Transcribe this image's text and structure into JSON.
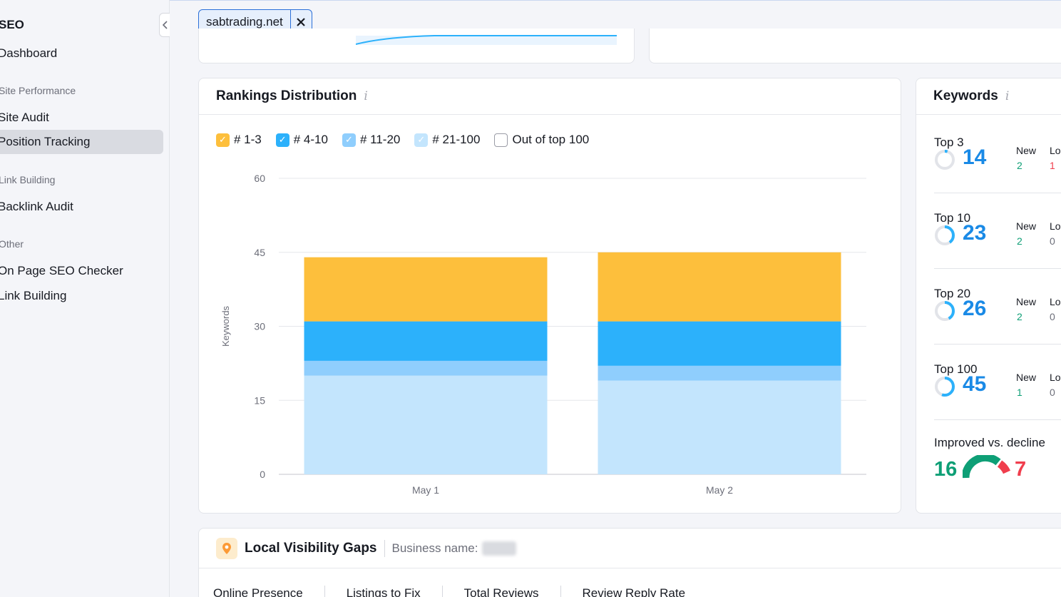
{
  "sidebar": {
    "section_title": "SEO",
    "dashboard": "Dashboard",
    "groups": [
      {
        "label": "Site Performance",
        "items": [
          "Site Audit",
          "Position Tracking"
        ]
      },
      {
        "label": "Link Building",
        "items": [
          "Backlink Audit"
        ]
      },
      {
        "label": "Other",
        "items": [
          "On Page SEO Checker",
          "Link Building"
        ]
      }
    ],
    "active_item": "Position Tracking",
    "collapse_icon": "chevron-left-icon"
  },
  "topbar": {
    "domain": "sabtrading.net",
    "remove_icon": "close-icon"
  },
  "rankings": {
    "title": "Rankings Distribution",
    "info_icon": "info-icon",
    "legend": [
      {
        "label": "# 1-3",
        "color": "#fdbf3c",
        "checked": true
      },
      {
        "label": "# 4-10",
        "color": "#2cb1fb",
        "checked": true
      },
      {
        "label": "# 11-20",
        "color": "#8fcefd",
        "checked": true
      },
      {
        "label": "# 21-100",
        "color": "#c3e5fd",
        "checked": true
      },
      {
        "label": "Out of top 100",
        "color": "#ffffff",
        "checked": false
      }
    ]
  },
  "chart_data": {
    "type": "bar",
    "stacked": true,
    "categories": [
      "May 1",
      "May 2"
    ],
    "series": [
      {
        "name": "# 21-100",
        "color": "#c3e5fd",
        "values": [
          20,
          19
        ]
      },
      {
        "name": "# 11-20",
        "color": "#8fcefd",
        "values": [
          3,
          3
        ]
      },
      {
        "name": "# 4-10",
        "color": "#2cb1fb",
        "values": [
          8,
          9
        ]
      },
      {
        "name": "# 1-3",
        "color": "#fdbf3c",
        "values": [
          13,
          14
        ]
      }
    ],
    "ylabel": "Keywords",
    "ylim": [
      0,
      60
    ],
    "yticks": [
      0,
      15,
      30,
      45,
      60
    ],
    "grid": true,
    "legend_position": "top-left"
  },
  "keywords": {
    "title": "Keywords",
    "info_icon": "info-icon",
    "new_label": "New",
    "lost_label": "Lo",
    "blocks": [
      {
        "label": "Top 3",
        "value": "14",
        "new": "2",
        "lost": "1",
        "lost_color": "#f03e4d",
        "ring_fraction": 0.05
      },
      {
        "label": "Top 10",
        "value": "23",
        "new": "2",
        "lost": "0",
        "lost_color": "#6c6e79",
        "ring_fraction": 0.4
      },
      {
        "label": "Top 20",
        "value": "26",
        "new": "2",
        "lost": "0",
        "lost_color": "#6c6e79",
        "ring_fraction": 0.42
      },
      {
        "label": "Top 100",
        "value": "45",
        "new": "1",
        "lost": "0",
        "lost_color": "#6c6e79",
        "ring_fraction": 0.55
      }
    ],
    "improved_label": "Improved vs. decline",
    "improved": "16",
    "declined": "7"
  },
  "local": {
    "pin_icon": "location-pin-icon",
    "title": "Local Visibility Gaps",
    "business_label": "Business name:",
    "tabs": [
      "Online Presence",
      "Listings to Fix",
      "Total Reviews",
      "Review Reply Rate"
    ]
  }
}
